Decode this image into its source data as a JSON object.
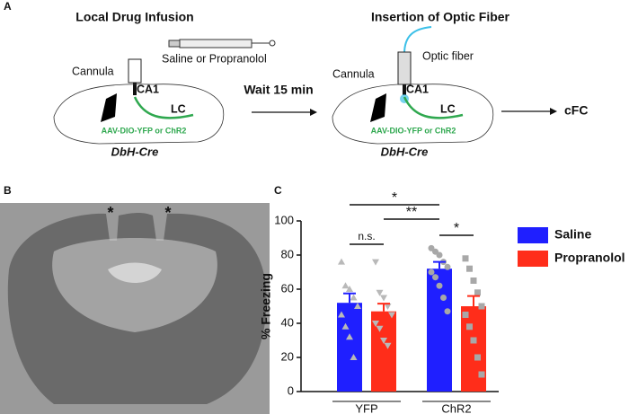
{
  "panel_a": {
    "label": "A",
    "left": {
      "title": "Local Drug Infusion",
      "drug": "Saline or Propranolol",
      "cannula": "Cannula",
      "ca1": "CA1",
      "lc": "LC",
      "virus": "AAV-DIO-YFP or ChR2",
      "mouse": "DbH-Cre"
    },
    "arrow_label": "Wait 15 min",
    "right": {
      "title": "Insertion of Optic Fiber",
      "fiber": "Optic fiber",
      "cannula": "Cannula",
      "ca1": "CA1",
      "lc": "LC",
      "virus": "AAV-DIO-YFP or ChR2",
      "mouse": "DbH-Cre"
    },
    "end": "cFC"
  },
  "panel_b": {
    "label": "B",
    "marks": [
      "*",
      "*"
    ]
  },
  "chart_data": {
    "type": "bar",
    "panel_label": "C",
    "y_label": "% Freezing",
    "categories": [
      "YFP",
      "ChR2"
    ],
    "series": [
      {
        "name": "Saline",
        "color": "#1f1fff",
        "values": [
          52,
          72
        ],
        "errors": [
          5.5,
          4
        ],
        "points": [
          [
            76,
            62,
            60,
            55,
            50,
            45,
            38,
            32,
            20
          ],
          [
            84,
            82,
            80,
            76,
            73,
            70,
            67,
            62,
            55,
            47
          ]
        ]
      },
      {
        "name": "Propranolol",
        "color": "#ff2d1a",
        "values": [
          47,
          50
        ],
        "errors": [
          4.5,
          6
        ],
        "points": [
          [
            76,
            58,
            55,
            50,
            45,
            40,
            37,
            30,
            27
          ],
          [
            78,
            72,
            65,
            58,
            50,
            45,
            38,
            30,
            20,
            10
          ]
        ]
      }
    ],
    "annotations": [
      "*",
      "**",
      "*",
      "n.s."
    ],
    "ylim": [
      0,
      100
    ],
    "yticks": [
      0,
      20,
      40,
      60,
      80,
      100
    ]
  }
}
